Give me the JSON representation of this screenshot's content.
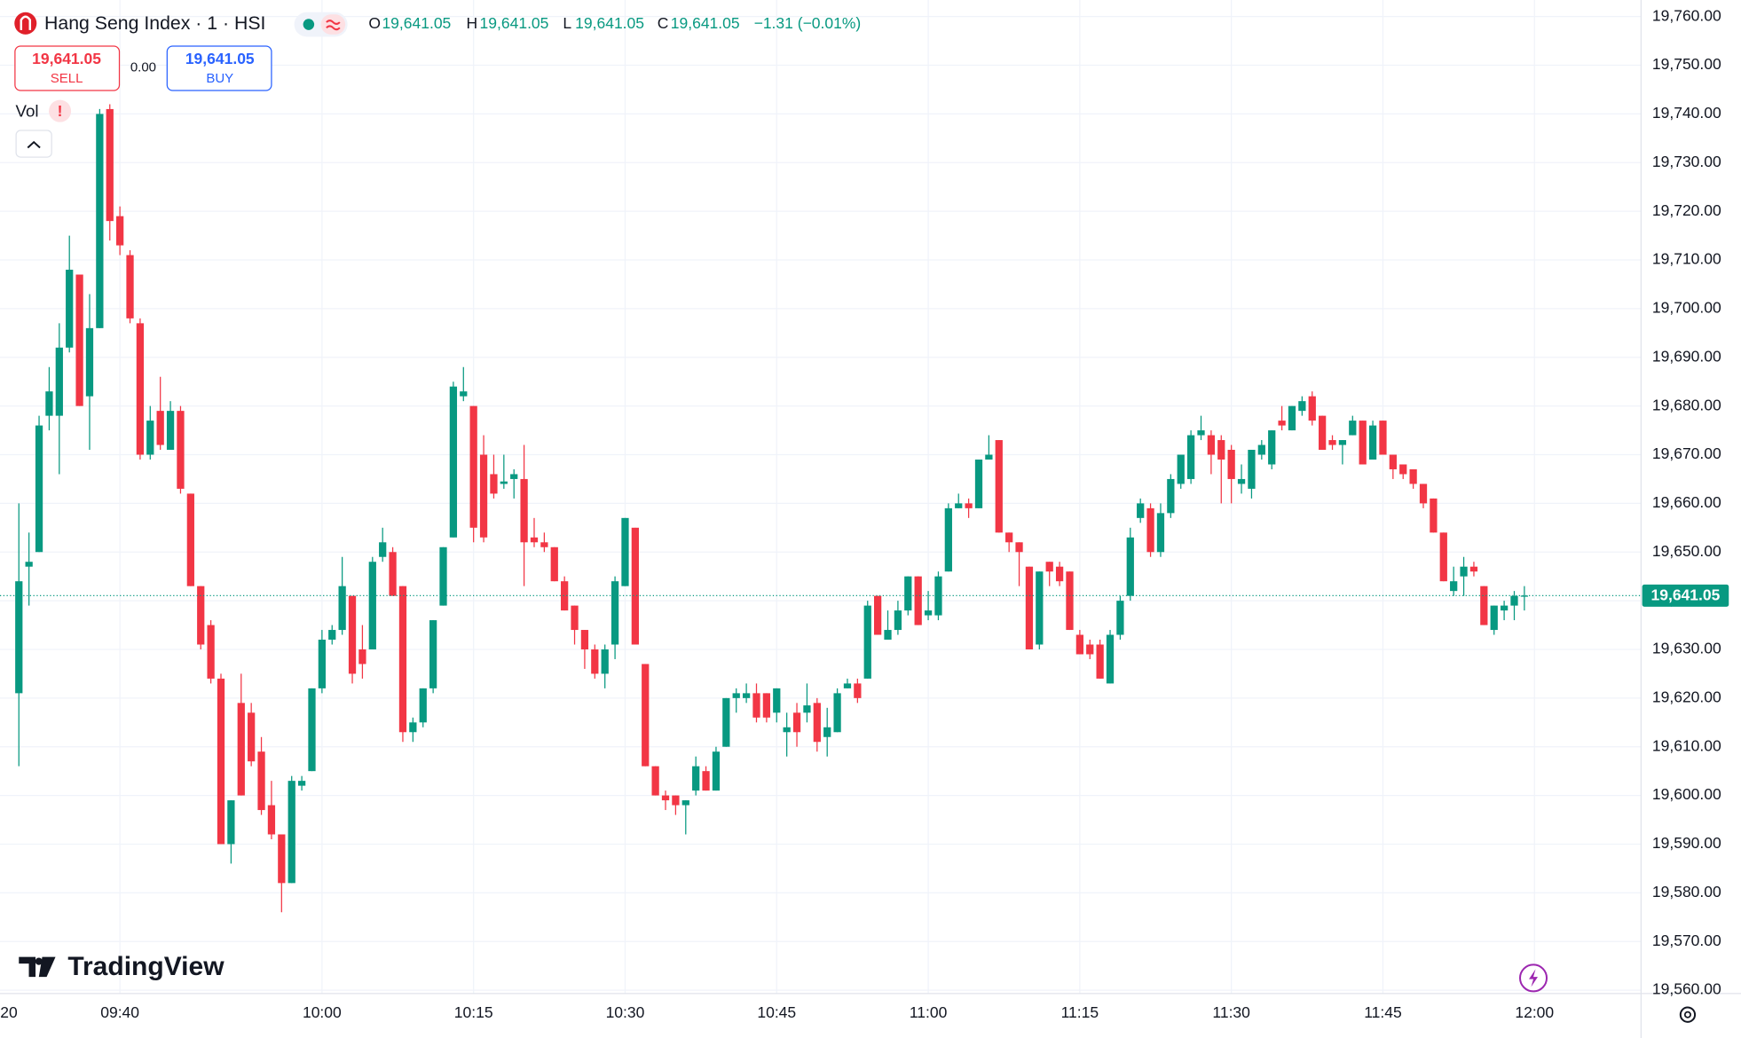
{
  "header": {
    "title": "Hang Seng Index · 1 · HSI",
    "o_label": "O",
    "o_value": "19,641.05",
    "h_label": "H",
    "h_value": "19,641.05",
    "l_label": "L",
    "l_value": "19,641.05",
    "c_label": "C",
    "c_value": "19,641.05",
    "change": "−1.31 (−0.01%)"
  },
  "trade": {
    "sell_price": "19,641.05",
    "sell_label": "SELL",
    "spread": "0.00",
    "buy_price": "19,641.05",
    "buy_label": "BUY"
  },
  "indicator": {
    "name": "Vol",
    "alert": "!"
  },
  "logo": "TradingView",
  "chart_data": {
    "type": "candlestick",
    "categories": [
      "09:30",
      "09:31",
      "09:32",
      "09:33",
      "09:34",
      "09:35",
      "09:36",
      "09:37",
      "09:38",
      "09:39",
      "09:40",
      "09:41",
      "09:42",
      "09:43",
      "09:44",
      "09:45",
      "09:46",
      "09:47",
      "09:48",
      "09:49",
      "09:50",
      "09:51",
      "09:52",
      "09:53",
      "09:54",
      "09:55",
      "09:56",
      "09:57",
      "09:58",
      "09:59",
      "10:00",
      "10:01",
      "10:02",
      "10:03",
      "10:04",
      "10:05",
      "10:06",
      "10:07",
      "10:08",
      "10:09",
      "10:10",
      "10:11",
      "10:12",
      "10:13",
      "10:14",
      "10:15",
      "10:16",
      "10:17",
      "10:18",
      "10:19",
      "10:20",
      "10:21",
      "10:22",
      "10:23",
      "10:24",
      "10:25",
      "10:26",
      "10:27",
      "10:28",
      "10:29",
      "10:30",
      "10:31",
      "10:32",
      "10:33",
      "10:34",
      "10:35",
      "10:36",
      "10:37",
      "10:38",
      "10:39",
      "10:40",
      "10:41",
      "10:42",
      "10:43",
      "10:44",
      "10:45",
      "10:46",
      "10:47",
      "10:48",
      "10:49",
      "10:50",
      "10:51",
      "10:52",
      "10:53",
      "10:54",
      "10:55",
      "10:56",
      "10:57",
      "10:58",
      "10:59",
      "11:00",
      "11:01",
      "11:02",
      "11:03",
      "11:04",
      "11:05",
      "11:06",
      "11:07",
      "11:08",
      "11:09",
      "11:10",
      "11:11",
      "11:12",
      "11:13",
      "11:14",
      "11:15",
      "11:16",
      "11:17",
      "11:18",
      "11:19",
      "11:20",
      "11:21",
      "11:22",
      "11:23",
      "11:24",
      "11:25",
      "11:26",
      "11:27",
      "11:28",
      "11:29",
      "11:30",
      "11:31",
      "11:32",
      "11:33",
      "11:34",
      "11:35",
      "11:36",
      "11:37",
      "11:38",
      "11:39",
      "11:40",
      "11:41",
      "11:42",
      "11:43",
      "11:44",
      "11:45",
      "11:46",
      "11:47",
      "11:48",
      "11:49",
      "11:50",
      "11:51",
      "11:52",
      "11:53",
      "11:54",
      "11:55",
      "11:56",
      "11:57",
      "11:58",
      "11:59"
    ],
    "open": [
      19621,
      19647,
      19650,
      19678,
      19678,
      19692,
      19707,
      19682,
      19696,
      19741,
      19719,
      19711,
      19697,
      19670,
      19679,
      19671,
      19679,
      19662,
      19643,
      19635,
      19624,
      19590,
      19619,
      19617,
      19609,
      19598,
      19592,
      19582,
      19602,
      19605,
      19622,
      19632,
      19634,
      19641,
      19630,
      19630,
      19649,
      19650,
      19643,
      19613,
      19615,
      19622,
      19639,
      19653,
      19682,
      19680,
      19670,
      19666,
      19664,
      19665,
      19665,
      19653,
      19652,
      19651,
      19644,
      19639,
      19634,
      19630,
      19625,
      19631,
      19643,
      19655,
      19627,
      19606,
      19600,
      19600,
      19598,
      19601,
      19605,
      19601,
      19610,
      19620,
      19620,
      19621,
      19621,
      19617,
      19613,
      19617,
      19617,
      19619,
      19612,
      19613,
      19622,
      19623,
      19624,
      19641,
      19632,
      19634,
      19638,
      19645,
      19637,
      19637,
      19646,
      19659,
      19660,
      19659,
      19669,
      19673,
      19654,
      19652,
      19647,
      19631,
      19648,
      19647,
      19646,
      19633,
      19631,
      19631,
      19623,
      19633,
      19641,
      19657,
      19659,
      19650,
      19658,
      19664,
      19665,
      19674,
      19674,
      19673,
      19671,
      19664,
      19663,
      19670,
      19668,
      19677,
      19675,
      19679,
      19682,
      19678,
      19673,
      19672,
      19674,
      19677,
      19669,
      19677,
      19670,
      19668,
      19667,
      19664,
      19661,
      19654,
      19642,
      19645,
      19647,
      19643,
      19634,
      19638,
      19639,
      19641
    ],
    "high": [
      19660,
      19654,
      19678,
      19688,
      19697,
      19715,
      19707,
      19703,
      19741,
      19742,
      19721,
      19712,
      19698,
      19680,
      19686,
      19681,
      19680,
      19662,
      19643,
      19636,
      19625,
      19599,
      19625,
      19619,
      19612,
      19603,
      19592,
      19604,
      19604,
      19622,
      19634,
      19635,
      19649,
      19641,
      19635,
      19649,
      19655,
      19651,
      19643,
      19616,
      19622,
      19636,
      19651,
      19685,
      19688,
      19680,
      19674,
      19670,
      19670,
      19667,
      19672,
      19657,
      19654,
      19651,
      19645,
      19639,
      19634,
      19631,
      19631,
      19645,
      19657,
      19655,
      19627,
      19606,
      19601,
      19600,
      19599,
      19608,
      19606,
      19610,
      19620,
      19622,
      19623,
      19623,
      19621,
      19622,
      19617,
      19619,
      19623,
      19620,
      19618,
      19622,
      19624,
      19624,
      19640,
      19641,
      19638,
      19640,
      19645,
      19645,
      19642,
      19646,
      19660,
      19662,
      19661,
      19669,
      19674,
      19673,
      19654,
      19652,
      19647,
      19646,
      19648,
      19648,
      19646,
      19634,
      19632,
      19632,
      19634,
      19641,
      19655,
      19661,
      19660,
      19660,
      19666,
      19670,
      19675,
      19678,
      19675,
      19674,
      19672,
      19668,
      19671,
      19673,
      19675,
      19680,
      19680,
      19682,
      19683,
      19678,
      19674,
      19673,
      19678,
      19677,
      19677,
      19677,
      19670,
      19668,
      19667,
      19664,
      19661,
      19654,
      19647,
      19649,
      19648,
      19643,
      19639,
      19640,
      19642,
      19643
    ],
    "low": [
      19606,
      19639,
      19650,
      19675,
      19666,
      19691,
      19680,
      19671,
      19696,
      19714,
      19711,
      19697,
      19669,
      19669,
      19671,
      19671,
      19662,
      19643,
      19630,
      19623,
      19590,
      19586,
      19600,
      19606,
      19596,
      19591,
      19576,
      19582,
      19601,
      19605,
      19621,
      19631,
      19633,
      19623,
      19624,
      19630,
      19648,
      19641,
      19611,
      19611,
      19614,
      19621,
      19639,
      19653,
      19681,
      19652,
      19652,
      19661,
      19663,
      19661,
      19643,
      19651,
      19650,
      19644,
      19638,
      19631,
      19626,
      19624,
      19622,
      19628,
      19643,
      19631,
      19606,
      19600,
      19597,
      19596,
      19592,
      19600,
      19601,
      19601,
      19610,
      19617,
      19619,
      19615,
      19615,
      19615,
      19608,
      19610,
      19615,
      19609,
      19608,
      19613,
      19622,
      19619,
      19624,
      19633,
      19632,
      19633,
      19637,
      19635,
      19636,
      19636,
      19646,
      19659,
      19657,
      19659,
      19669,
      19654,
      19650,
      19643,
      19630,
      19630,
      19643,
      19643,
      19634,
      19629,
      19628,
      19624,
      19623,
      19632,
      19640,
      19656,
      19649,
      19649,
      19657,
      19663,
      19664,
      19673,
      19666,
      19660,
      19660,
      19662,
      19661,
      19669,
      19667,
      19675,
      19675,
      19678,
      19676,
      19671,
      19671,
      19668,
      19674,
      19668,
      19669,
      19670,
      19665,
      19665,
      19663,
      19659,
      19654,
      19644,
      19641,
      19641,
      19645,
      19635,
      19633,
      19636,
      19636,
      19638
    ],
    "close": [
      19644,
      19648,
      19676,
      19683,
      19692,
      19708,
      19680,
      19696,
      19740,
      19718,
      19713,
      19698,
      19670,
      19677,
      19672,
      19679,
      19663,
      19643,
      19631,
      19624,
      19590,
      19599,
      19600,
      19607,
      19597,
      19592,
      19582,
      19603,
      19603,
      19622,
      19632,
      19634,
      19643,
      19625,
      19627,
      19648,
      19652,
      19641,
      19613,
      19615,
      19622,
      19636,
      19651,
      19684,
      19683,
      19655,
      19653,
      19662,
      19664.5,
      19666,
      19652,
      19652,
      19651,
      19644,
      19638,
      19634,
      19630,
      19625,
      19630,
      19644,
      19657,
      19631,
      19606,
      19600,
      19599,
      19598,
      19599,
      19606,
      19601,
      19609,
      19620,
      19621,
      19621,
      19616,
      19616,
      19622,
      19614,
      19613,
      19618.5,
      19611,
      19614,
      19621,
      19623,
      19620,
      19639,
      19633,
      19634,
      19638,
      19645,
      19635,
      19638,
      19645,
      19659,
      19660,
      19659,
      19669,
      19670,
      19654,
      19652,
      19650,
      19630,
      19646,
      19646,
      19644,
      19634,
      19629,
      19629,
      19624,
      19633,
      19640,
      19653,
      19660,
      19650,
      19658,
      19665,
      19670,
      19674,
      19675,
      19670,
      19669,
      19665,
      19665,
      19671,
      19672,
      19675,
      19676,
      19680,
      19681,
      19677,
      19671,
      19672,
      19673,
      19677,
      19668,
      19676,
      19670,
      19667,
      19666,
      19664,
      19660,
      19654,
      19644,
      19644,
      19647,
      19646,
      19635,
      19639,
      19639,
      19641,
      19641.05
    ],
    "up_color": "#089981",
    "down_color": "#f23645",
    "ylim": [
      19559.3,
      19763.4
    ],
    "yticks": [
      {
        "value": 19560,
        "label": "19,560.00"
      },
      {
        "value": 19570,
        "label": "19,570.00"
      },
      {
        "value": 19580,
        "label": "19,580.00"
      },
      {
        "value": 19590,
        "label": "19,590.00"
      },
      {
        "value": 19600,
        "label": "19,600.00"
      },
      {
        "value": 19610,
        "label": "19,610.00"
      },
      {
        "value": 19620,
        "label": "19,620.00"
      },
      {
        "value": 19630,
        "label": "19,630.00"
      },
      {
        "value": 19640,
        "label": "19,640.00"
      },
      {
        "value": 19650,
        "label": "19,650.00"
      },
      {
        "value": 19660,
        "label": "19,660.00"
      },
      {
        "value": 19670,
        "label": "19,670.00"
      },
      {
        "value": 19680,
        "label": "19,680.00"
      },
      {
        "value": 19690,
        "label": "19,690.00"
      },
      {
        "value": 19700,
        "label": "19,700.00"
      },
      {
        "value": 19710,
        "label": "19,710.00"
      },
      {
        "value": 19720,
        "label": "19,720.00"
      },
      {
        "value": 19730,
        "label": "19,730.00"
      },
      {
        "value": 19740,
        "label": "19,740.00"
      },
      {
        "value": 19750,
        "label": "19,750.00"
      },
      {
        "value": 19760,
        "label": "19,760.00"
      }
    ],
    "xticks": [
      "09:40",
      "10:00",
      "10:15",
      "10:30",
      "10:45",
      "11:00",
      "11:15",
      "11:30",
      "11:45",
      "12:00"
    ],
    "x_edge_label": "20",
    "last_price": {
      "value": 19641.05,
      "label": "19,641.05"
    },
    "grid": true
  }
}
